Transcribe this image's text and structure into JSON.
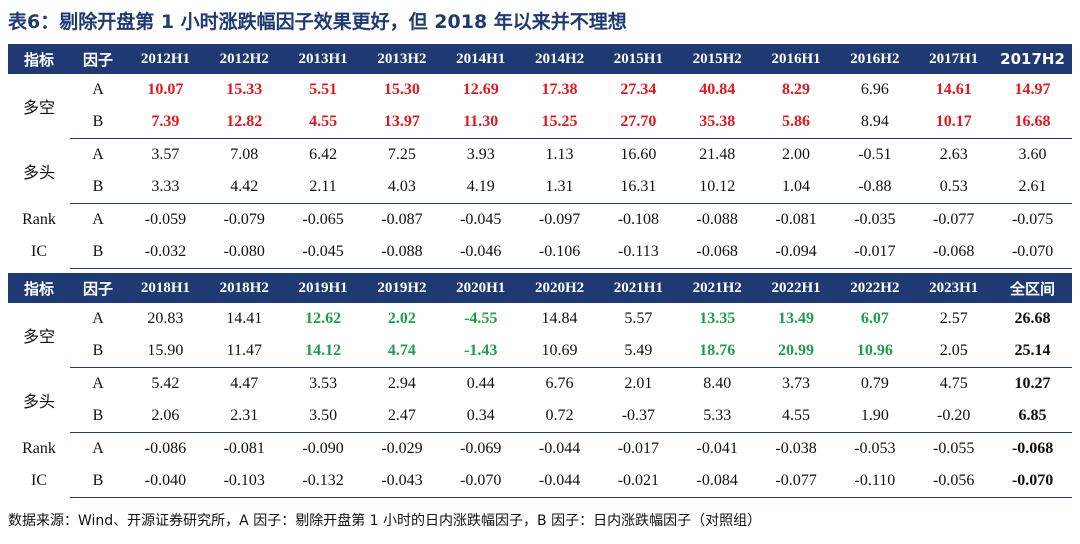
{
  "title": "表6：剔除开盘第 1 小时涨跌幅因子效果更好，但 2018 年以来并不理想",
  "colors": {
    "header_bg": "#1f3a73",
    "red": "#e3171f",
    "green": "#1f9e4a"
  },
  "table1": {
    "headers": [
      "指标",
      "因子",
      "2012H1",
      "2012H2",
      "2013H1",
      "2013H2",
      "2014H1",
      "2014H2",
      "2015H1",
      "2015H2",
      "2016H1",
      "2016H2",
      "2017H1",
      "2017H2"
    ],
    "groups": [
      {
        "label": "多空",
        "rows": [
          {
            "factor": "A",
            "values": [
              "10.07",
              "15.33",
              "5.51",
              "15.30",
              "12.69",
              "17.38",
              "27.34",
              "40.84",
              "8.29",
              "6.96",
              "14.61",
              "14.97"
            ],
            "styles": [
              "red",
              "red",
              "red",
              "red",
              "red",
              "red",
              "red",
              "red",
              "red",
              "",
              "red",
              "red"
            ]
          },
          {
            "factor": "B",
            "values": [
              "7.39",
              "12.82",
              "4.55",
              "13.97",
              "11.30",
              "15.25",
              "27.70",
              "35.38",
              "5.86",
              "8.94",
              "10.17",
              "16.68"
            ],
            "styles": [
              "red",
              "red",
              "red",
              "red",
              "red",
              "red",
              "red",
              "red",
              "red",
              "",
              "red",
              "red"
            ]
          }
        ]
      },
      {
        "label": "多头",
        "rows": [
          {
            "factor": "A",
            "values": [
              "3.57",
              "7.08",
              "6.42",
              "7.25",
              "3.93",
              "1.13",
              "16.60",
              "21.48",
              "2.00",
              "-0.51",
              "2.63",
              "3.60"
            ]
          },
          {
            "factor": "B",
            "values": [
              "3.33",
              "4.42",
              "2.11",
              "4.03",
              "4.19",
              "1.31",
              "16.31",
              "10.12",
              "1.04",
              "-0.88",
              "0.53",
              "2.61"
            ]
          }
        ]
      },
      {
        "label": "Rank IC",
        "label_lines": [
          "Rank",
          "IC"
        ],
        "rows": [
          {
            "factor": "A",
            "values": [
              "-0.059",
              "-0.079",
              "-0.065",
              "-0.087",
              "-0.045",
              "-0.097",
              "-0.108",
              "-0.088",
              "-0.081",
              "-0.035",
              "-0.077",
              "-0.075"
            ]
          },
          {
            "factor": "B",
            "values": [
              "-0.032",
              "-0.080",
              "-0.045",
              "-0.088",
              "-0.046",
              "-0.106",
              "-0.113",
              "-0.068",
              "-0.094",
              "-0.017",
              "-0.068",
              "-0.070"
            ]
          }
        ]
      }
    ]
  },
  "table2": {
    "headers": [
      "指标",
      "因子",
      "2018H1",
      "2018H2",
      "2019H1",
      "2019H2",
      "2020H1",
      "2020H2",
      "2021H1",
      "2021H2",
      "2022H1",
      "2022H2",
      "2023H1",
      "全区间"
    ],
    "groups": [
      {
        "label": "多空",
        "rows": [
          {
            "factor": "A",
            "values": [
              "20.83",
              "14.41",
              "12.62",
              "2.02",
              "-4.55",
              "14.84",
              "5.57",
              "13.35",
              "13.49",
              "6.07",
              "2.57",
              "26.68"
            ],
            "styles": [
              "",
              "",
              "green",
              "green",
              "green",
              "",
              "",
              "green",
              "green",
              "green",
              "",
              "bold"
            ]
          },
          {
            "factor": "B",
            "values": [
              "15.90",
              "11.47",
              "14.12",
              "4.74",
              "-1.43",
              "10.69",
              "5.49",
              "18.76",
              "20.99",
              "10.96",
              "2.05",
              "25.14"
            ],
            "styles": [
              "",
              "",
              "green",
              "green",
              "green",
              "",
              "",
              "green",
              "green",
              "green",
              "",
              "bold"
            ]
          }
        ]
      },
      {
        "label": "多头",
        "rows": [
          {
            "factor": "A",
            "values": [
              "5.42",
              "4.47",
              "3.53",
              "2.94",
              "0.44",
              "6.76",
              "2.01",
              "8.40",
              "3.73",
              "0.79",
              "4.75",
              "10.27"
            ],
            "styles": [
              "",
              "",
              "",
              "",
              "",
              "",
              "",
              "",
              "",
              "",
              "",
              "bold"
            ]
          },
          {
            "factor": "B",
            "values": [
              "2.06",
              "2.31",
              "3.50",
              "2.47",
              "0.34",
              "0.72",
              "-0.37",
              "5.33",
              "4.55",
              "1.90",
              "-0.20",
              "6.85"
            ],
            "styles": [
              "",
              "",
              "",
              "",
              "",
              "",
              "",
              "",
              "",
              "",
              "",
              "bold"
            ]
          }
        ]
      },
      {
        "label": "Rank IC",
        "label_lines": [
          "Rank",
          "IC"
        ],
        "rows": [
          {
            "factor": "A",
            "values": [
              "-0.086",
              "-0.081",
              "-0.090",
              "-0.029",
              "-0.069",
              "-0.044",
              "-0.017",
              "-0.041",
              "-0.038",
              "-0.053",
              "-0.055",
              "-0.068"
            ],
            "styles": [
              "",
              "",
              "",
              "",
              "",
              "",
              "",
              "",
              "",
              "",
              "",
              "bold"
            ]
          },
          {
            "factor": "B",
            "values": [
              "-0.040",
              "-0.103",
              "-0.132",
              "-0.043",
              "-0.070",
              "-0.044",
              "-0.021",
              "-0.084",
              "-0.077",
              "-0.110",
              "-0.056",
              "-0.070"
            ],
            "styles": [
              "",
              "",
              "",
              "",
              "",
              "",
              "",
              "",
              "",
              "",
              "",
              "bold"
            ]
          }
        ]
      }
    ]
  },
  "note": "数据来源：Wind、开源证券研究所，A 因子：剔除开盘第 1 小时的日内涨跌幅因子，B 因子：日内涨跌幅因子（对照组）"
}
